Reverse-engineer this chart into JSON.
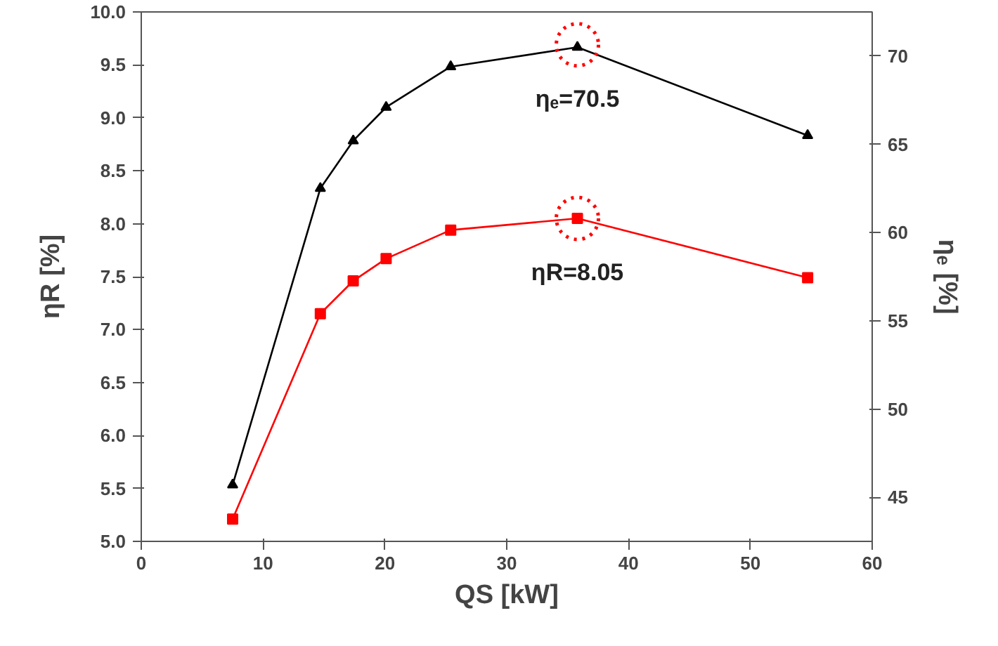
{
  "chart_data": {
    "type": "line",
    "xlabel": "QS [kW]",
    "ylabel": "ηR [%]",
    "y2label": "ηₑ [%]",
    "x": [
      7.5,
      14.7,
      17.4,
      20.1,
      25.4,
      35.8,
      54.7
    ],
    "series": [
      {
        "color": "#000000",
        "axis": "y2",
        "marker": "triangle",
        "values": [
          45.7,
          62.5,
          65.2,
          67.1,
          69.4,
          70.5,
          65.5
        ]
      },
      {
        "color": "#ff0000",
        "marker": "square",
        "values": [
          5.21,
          7.15,
          7.46,
          7.67,
          7.94,
          8.05,
          7.49
        ]
      }
    ],
    "annotations": [
      {
        "text": "ηₑ=70.5",
        "x": 35.8,
        "y": 9.69
      },
      {
        "text": "ηR=8.05",
        "x": 35.8,
        "y": 8.05
      }
    ],
    "xlim": [
      0,
      60
    ],
    "xticks": [
      0,
      10,
      20,
      30,
      40,
      50,
      60
    ],
    "ylim": [
      5.0,
      10.0
    ],
    "yticks": [
      {
        "value": 5,
        "label": "5.0"
      },
      5.5,
      {
        "value": 6,
        "label": "6.0"
      },
      6.5,
      {
        "value": 7,
        "label": "7.0"
      },
      7.5,
      {
        "value": 8,
        "label": "8.0"
      },
      8.5,
      {
        "value": 9,
        "label": "9.0"
      },
      9.5,
      {
        "value": 10,
        "label": "10.0"
      }
    ],
    "y2lim": [
      42.5,
      72.5
    ],
    "y2ticks": [
      45,
      50,
      55,
      60,
      65,
      70
    ],
    "grid": false
  }
}
